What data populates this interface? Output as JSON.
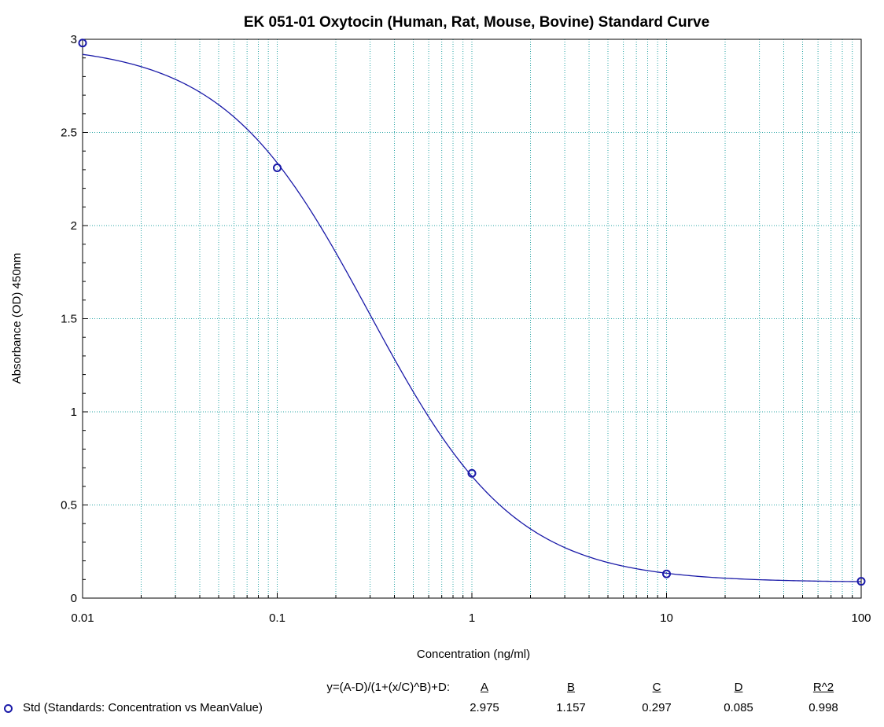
{
  "chart_data": {
    "type": "scatter",
    "title": "EK 051-01 Oxytocin (Human, Rat, Mouse, Bovine) Standard Curve",
    "xlabel": "Concentration (ng/ml)",
    "ylabel": "Absorbance (OD) 450nm",
    "x_scale": "log",
    "xlim": [
      0.01,
      100
    ],
    "ylim": [
      0,
      3
    ],
    "x_ticks": [
      "0.01",
      "0.1",
      "1",
      "10",
      "100"
    ],
    "y_ticks": [
      "0",
      "0.5",
      "1",
      "1.5",
      "2",
      "2.5",
      "3"
    ],
    "grid": true,
    "series": [
      {
        "name": "Std (Standards: Concentration vs MeanValue)",
        "x": [
          0.01,
          0.1,
          1,
          10,
          100
        ],
        "y": [
          2.98,
          2.31,
          0.67,
          0.13,
          0.09
        ]
      }
    ],
    "fit": {
      "equation": "y=(A-D)/(1+(x/C)^B)+D:",
      "params": {
        "A": 2.975,
        "B": 1.157,
        "C": 0.297,
        "D": 0.085
      },
      "r2": 0.998
    },
    "colors": {
      "grid": "#2aa6a6",
      "curve": "#1a1aa8",
      "marker": "#1a1aa8"
    }
  },
  "legend": {
    "equation_label": "y=(A-D)/(1+(x/C)^B)+D:",
    "headers": [
      "A",
      "B",
      "C",
      "D",
      "R^2"
    ],
    "values": [
      "2.975",
      "1.157",
      "0.297",
      "0.085",
      "0.998"
    ],
    "series_label": "Std (Standards: Concentration vs MeanValue)"
  }
}
